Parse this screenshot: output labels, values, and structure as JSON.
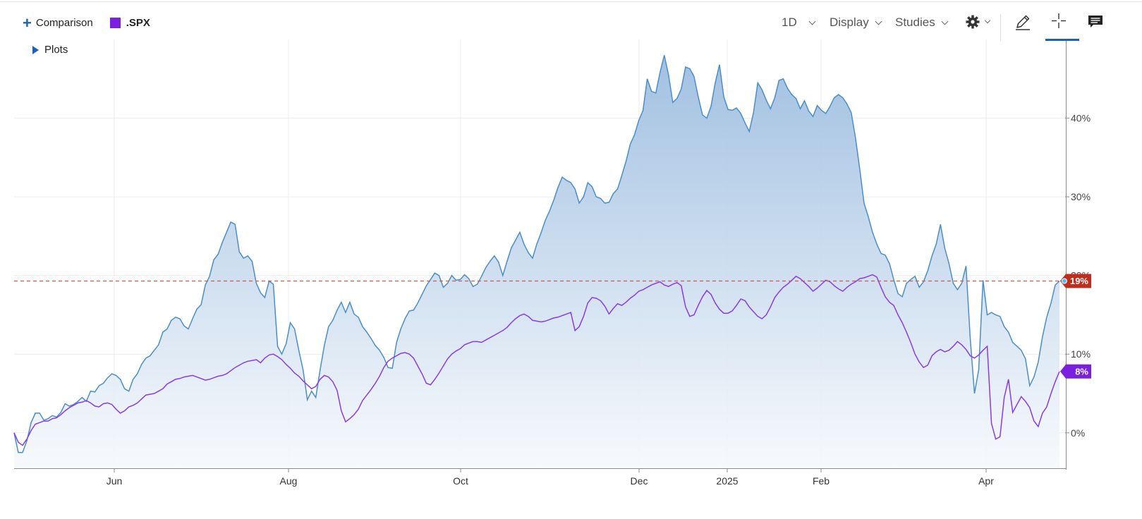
{
  "toolbar": {
    "comparison_label": "Comparison",
    "symbol_label": ".SPX",
    "symbol_color": "#7b1fe0",
    "interval_label": "1D",
    "display_label": "Display",
    "studies_label": "Studies",
    "icons": [
      "gear-icon",
      "pencil-icon",
      "crosshair-icon",
      "comment-icon"
    ],
    "plots_label": "Plots"
  },
  "chart_data": {
    "type": "line",
    "x_tick_labels": [
      "Jun",
      "Aug",
      "Oct",
      "Dec",
      "2025",
      "Feb",
      "Apr"
    ],
    "y_tick_labels": [
      "0%",
      "10%",
      "20%",
      "30%",
      "40%"
    ],
    "y_ticks": [
      0,
      10,
      20,
      30,
      40
    ],
    "ylim": [
      -4.5,
      50
    ],
    "grid": true,
    "reference_line_value": 19.3,
    "main_color": "#4a8ec9",
    "fill_top_color": "#9cbde0",
    "fill_bottom_color": "#f6f9fc",
    "reference_line_color": "#e0533d",
    "series": [
      {
        "color": "#4a8ec9",
        "last_label": "19%",
        "label_color": "#c12d1d",
        "values": [
          0,
          -2.5,
          -2.5,
          -1,
          1.3,
          2.5,
          2.5,
          1.6,
          1.8,
          2.2,
          2,
          2.6,
          3.7,
          3.4,
          3.6,
          4,
          4.5,
          4,
          5.3,
          5.2,
          6,
          6.3,
          7,
          7.5,
          7.3,
          6.8,
          5.6,
          5.3,
          6.8,
          7.5,
          8.7,
          9.5,
          9.8,
          10.5,
          11.2,
          12.8,
          13.2,
          14.3,
          14.7,
          14.5,
          13.6,
          13.2,
          14.5,
          15.7,
          16.3,
          18.8,
          19.9,
          22,
          22.7,
          24.2,
          25.5,
          26.8,
          26.5,
          23,
          22.2,
          22.5,
          21.8,
          19,
          17.8,
          17.2,
          19.3,
          18.9,
          11,
          10,
          11.3,
          14,
          13.2,
          10.5,
          8,
          4.2,
          5.3,
          4.5,
          8,
          11.1,
          13.5,
          14.3,
          15.6,
          16.6,
          15.3,
          16.6,
          15.1,
          14.7,
          13.5,
          12.8,
          12,
          11.1,
          10.5,
          9.6,
          8.3,
          8.2,
          11.5,
          13.2,
          14.5,
          15.5,
          15.6,
          16.5,
          17.6,
          18.7,
          19.5,
          20.3,
          20,
          18.5,
          19,
          20,
          19.4,
          19.5,
          20.1,
          19.6,
          18.6,
          18.9,
          19.9,
          21,
          21.8,
          22.5,
          21.7,
          20,
          21.8,
          23.5,
          24.5,
          25.5,
          24,
          22.9,
          22.2,
          24,
          25.4,
          27,
          28.2,
          29.6,
          31.2,
          32.5,
          32.1,
          31.8,
          31,
          29.2,
          30,
          31.8,
          31.3,
          30,
          29.8,
          29.2,
          29.3,
          30.4,
          31,
          32.7,
          34.5,
          36.7,
          37.9,
          39.7,
          41,
          45,
          43.4,
          43.2,
          45.8,
          48,
          45.5,
          42,
          42.5,
          43.7,
          46.5,
          46.3,
          45.3,
          42.7,
          40.4,
          40,
          41.5,
          44.5,
          46.8,
          42.7,
          41.1,
          41,
          41.3,
          40.6,
          39.4,
          38.3,
          40.7,
          44.5,
          43.6,
          42.3,
          41.2,
          42.6,
          44.8,
          45,
          43.8,
          43,
          42.5,
          41.2,
          42.2,
          40.9,
          40.2,
          41.6,
          41,
          40.6,
          41.5,
          42.6,
          43,
          42.6,
          41.8,
          40.7,
          37.5,
          33.5,
          29.2,
          27.5,
          25.5,
          24,
          22.8,
          22.6,
          21.5,
          19.5,
          17.7,
          17.3,
          19,
          19.5,
          19.9,
          18.5,
          19.2,
          20.6,
          22.5,
          24,
          26.5,
          23.5,
          21.5,
          19,
          18.2,
          19,
          21.2,
          12,
          5,
          8,
          19.4,
          15,
          15.3,
          15,
          14.8,
          13.5,
          12.8,
          11.5,
          11,
          10.5,
          9.4,
          6,
          7.1,
          9,
          12.2,
          14.7,
          16.5,
          18.8,
          19.3
        ]
      },
      {
        "color": "#8a3be8",
        "last_label": "8%",
        "label_color": "#7b1fe0",
        "values": [
          0,
          -1.2,
          -1.6,
          -0.8,
          0.3,
          1.1,
          1.3,
          1.5,
          1.5,
          1.8,
          1.9,
          2.3,
          2.8,
          3.2,
          3.5,
          3.8,
          3.9,
          4.1,
          3.8,
          3.4,
          3.3,
          3.7,
          3.8,
          3.6,
          3.0,
          2.5,
          2.8,
          3.3,
          3.5,
          3.8,
          4.3,
          4.8,
          4.9,
          5.0,
          5.3,
          5.6,
          6.2,
          6.5,
          6.8,
          6.9,
          7.1,
          7.2,
          7.3,
          7.1,
          6.9,
          6.7,
          6.8,
          7.0,
          7.2,
          7.3,
          7.5,
          7.9,
          8.3,
          8.6,
          8.9,
          9.1,
          9.2,
          9.3,
          8.9,
          9.5,
          9.9,
          10.0,
          9.7,
          9.3,
          8.7,
          8.2,
          7.6,
          7.2,
          6.6,
          6.1,
          5.6,
          5.9,
          6.8,
          7.3,
          7.1,
          6.5,
          5.4,
          2.8,
          1.4,
          1.8,
          2.3,
          3.0,
          4.1,
          4.8,
          5.5,
          6.3,
          7.2,
          8.3,
          9.1,
          9.5,
          9.8,
          10.1,
          10.2,
          10.0,
          9.5,
          8.5,
          7.5,
          6.3,
          6.1,
          6.8,
          7.6,
          8.5,
          9.4,
          10.0,
          10.4,
          10.7,
          11.2,
          11.4,
          11.6,
          11.6,
          11.5,
          11.8,
          12.1,
          12.4,
          12.7,
          13.0,
          13.4,
          14.0,
          14.5,
          14.9,
          15.1,
          14.8,
          14.3,
          14.2,
          14.1,
          14.2,
          14.4,
          14.6,
          14.7,
          14.9,
          15.1,
          15.3,
          13.0,
          13.5,
          14.8,
          16.5,
          17.2,
          17.1,
          16.8,
          16.1,
          15.1,
          15.8,
          16.4,
          16.2,
          16.6,
          17.1,
          17.5,
          18.0,
          18.2,
          18.5,
          18.8,
          19.0,
          19.2,
          18.8,
          18.6,
          18.9,
          19.1,
          18.7,
          16.0,
          14.8,
          15.0,
          16.2,
          17.3,
          18.1,
          17.6,
          16.5,
          15.7,
          15.2,
          15.2,
          15.5,
          16.2,
          17.0,
          16.8,
          16.0,
          15.4,
          14.8,
          14.5,
          15.0,
          16.0,
          17.2,
          17.9,
          18.5,
          18.9,
          19.4,
          19.9,
          19.6,
          19.1,
          18.6,
          18.0,
          18.4,
          18.9,
          19.4,
          19.2,
          18.7,
          18.3,
          18.0,
          18.5,
          18.9,
          19.2,
          19.6,
          19.7,
          19.9,
          20.1,
          19.8,
          18.5,
          17.3,
          16.6,
          16.2,
          15.0,
          14.0,
          12.8,
          11.5,
          10.0,
          9.0,
          8.3,
          8.6,
          9.8,
          10.3,
          10.6,
          10.3,
          10.5,
          11.0,
          11.6,
          11.2,
          10.6,
          9.8,
          9.5,
          9.9,
          10.5,
          11.0,
          1.2,
          -0.8,
          -0.5,
          4.5,
          6.8,
          2.6,
          3.6,
          4.6,
          4.0,
          3.2,
          1.5,
          0.8,
          2.5,
          3.3,
          5.0,
          6.5,
          7.8
        ]
      }
    ]
  }
}
